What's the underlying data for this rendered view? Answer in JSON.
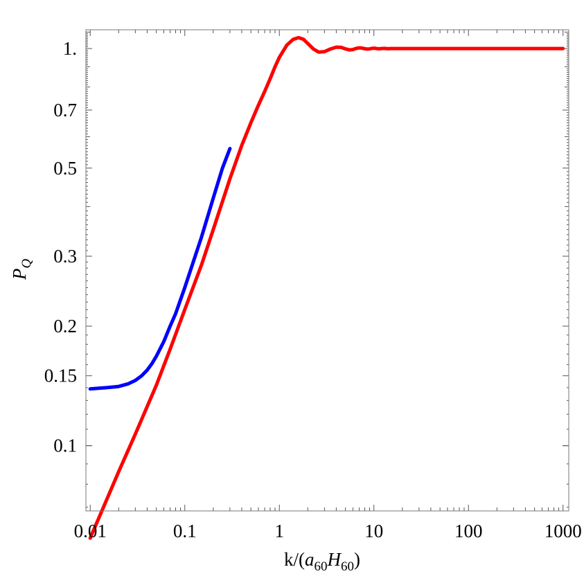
{
  "chart_data": {
    "type": "line",
    "title": "",
    "xlabel": {
      "prefix": "k/(",
      "a": "a",
      "a_sub": "60",
      "h": "H",
      "h_sub": "60",
      "suffix": ")"
    },
    "ylabel": {
      "main": "P",
      "sub": "Q"
    },
    "xscale": "log",
    "yscale": "log",
    "xlim": [
      0.009,
      1150
    ],
    "ylim": [
      0.0685,
      1.115
    ],
    "grid": false,
    "legend": "none",
    "x_ticks": [
      {
        "value": 0.01,
        "label": "0.01"
      },
      {
        "value": 0.1,
        "label": "0.1"
      },
      {
        "value": 1,
        "label": "1"
      },
      {
        "value": 10,
        "label": "10"
      },
      {
        "value": 100,
        "label": "100"
      },
      {
        "value": 1000,
        "label": "1000"
      }
    ],
    "y_ticks": [
      {
        "value": 0.1,
        "label": "0.1"
      },
      {
        "value": 0.15,
        "label": "0.15"
      },
      {
        "value": 0.2,
        "label": "0.2"
      },
      {
        "value": 0.3,
        "label": "0.3"
      },
      {
        "value": 0.5,
        "label": "0.5"
      },
      {
        "value": 0.7,
        "label": "0.7"
      },
      {
        "value": 1,
        "label": "1."
      }
    ],
    "series": [
      {
        "color": "#0000ff",
        "x": [
          0.01,
          0.015,
          0.02,
          0.025,
          0.03,
          0.035,
          0.04,
          0.045,
          0.05,
          0.06,
          0.07,
          0.08,
          0.1,
          0.12,
          0.15,
          0.2,
          0.25,
          0.3
        ],
        "y": [
          0.139,
          0.14,
          0.141,
          0.143,
          0.146,
          0.15,
          0.155,
          0.161,
          0.168,
          0.183,
          0.2,
          0.215,
          0.25,
          0.285,
          0.335,
          0.42,
          0.5,
          0.56
        ]
      },
      {
        "color": "#ff0000",
        "x": [
          0.01,
          0.02,
          0.03,
          0.05,
          0.07,
          0.1,
          0.15,
          0.2,
          0.3,
          0.4,
          0.5,
          0.6,
          0.7,
          0.8,
          0.9,
          1,
          1.2,
          1.4,
          1.6,
          1.8,
          2,
          2.3,
          2.6,
          3,
          3.5,
          4,
          4.5,
          5,
          5.5,
          6,
          6.5,
          7,
          7.5,
          8,
          8.5,
          9,
          9.5,
          10,
          10.5,
          11,
          11.5,
          12,
          13,
          14,
          15,
          16,
          17,
          18,
          20,
          25,
          30,
          50,
          100,
          300,
          1000
        ],
        "y": [
          0.0585,
          0.086,
          0.107,
          0.142,
          0.175,
          0.22,
          0.285,
          0.35,
          0.47,
          0.57,
          0.65,
          0.72,
          0.78,
          0.84,
          0.9,
          0.95,
          1.02,
          1.055,
          1.065,
          1.055,
          1.03,
          0.997,
          0.98,
          0.982,
          0.998,
          1.008,
          1.007,
          0.998,
          0.992,
          0.994,
          1.001,
          1.004,
          1.003,
          0.999,
          0.997,
          0.998,
          1.001,
          1.002,
          1.001,
          0.999,
          0.999,
          1.0,
          1.001,
          0.999,
          1.0,
          1.0,
          1.0,
          1.0,
          1.0,
          1.0,
          1.0,
          1.0,
          1.0,
          1.0,
          1.0
        ]
      }
    ]
  }
}
